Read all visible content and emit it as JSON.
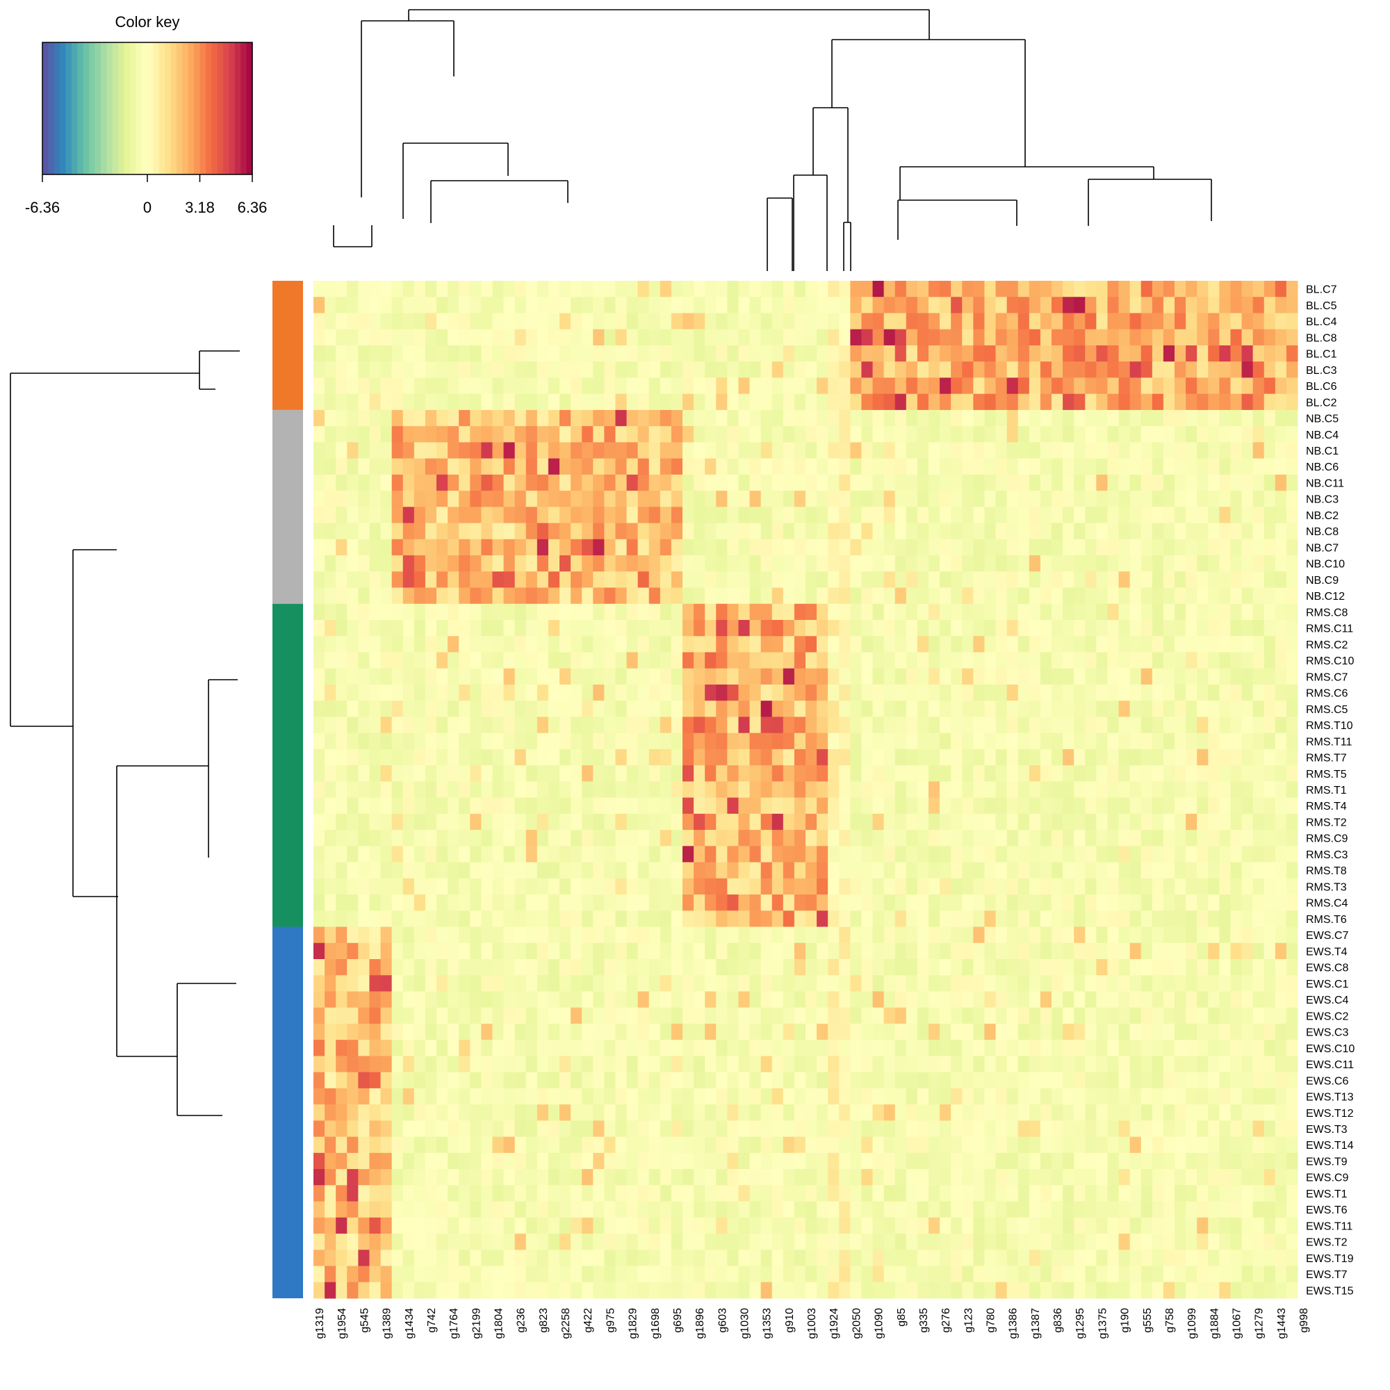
{
  "chart_data": {
    "type": "heatmap",
    "color_key": {
      "title": "Color key",
      "tick_labels": [
        "-6.36",
        "0",
        "3.18",
        "6.36"
      ],
      "ticks": [
        -6.36,
        0,
        3.18,
        6.36
      ],
      "min": -6.36,
      "max": 6.36,
      "palette": [
        "#5e4fa2",
        "#3288bd",
        "#66c2a5",
        "#abdda4",
        "#e6f598",
        "#ffffbf",
        "#fee08b",
        "#fdae61",
        "#f46d43",
        "#d53e4f",
        "#9e0142"
      ]
    },
    "columns": [
      "g1319",
      "g1954",
      "g545",
      "g1389",
      "g1434",
      "g742",
      "g1764",
      "g2199",
      "g1804",
      "g236",
      "g823",
      "g2258",
      "g422",
      "g975",
      "g1829",
      "g1698",
      "g695",
      "g1896",
      "g603",
      "g1030",
      "g1353",
      "g910",
      "g1003",
      "g1924",
      "g2050",
      "g1090",
      "g85",
      "g335",
      "g276",
      "g123",
      "g780",
      "g1386",
      "g1387",
      "g836",
      "g1295",
      "g1375",
      "g190",
      "g555",
      "g758",
      "g1099",
      "g1884",
      "g1067",
      "g1279",
      "g1443",
      "g998"
    ],
    "column_label_step": 2,
    "num_columns": 88,
    "column_blocks": [
      {
        "name": "g1319-g1389",
        "start": 0,
        "end": 7
      },
      {
        "name": "g1434-g695",
        "start": 7,
        "end": 33
      },
      {
        "name": "g1896-g1924",
        "start": 33,
        "end": 46
      },
      {
        "name": "g2050",
        "start": 46,
        "end": 48
      },
      {
        "name": "g1090-g998",
        "start": 48,
        "end": 88
      }
    ],
    "rows": [
      "BL.C7",
      "BL.C5",
      "BL.C4",
      "BL.C8",
      "BL.C1",
      "BL.C3",
      "BL.C6",
      "BL.C2",
      "NB.C5",
      "NB.C4",
      "NB.C1",
      "NB.C6",
      "NB.C11",
      "NB.C3",
      "NB.C2",
      "NB.C8",
      "NB.C7",
      "NB.C10",
      "NB.C9",
      "NB.C12",
      "RMS.C8",
      "RMS.C11",
      "RMS.C2",
      "RMS.C10",
      "RMS.C7",
      "RMS.C6",
      "RMS.C5",
      "RMS.T10",
      "RMS.T11",
      "RMS.T7",
      "RMS.T5",
      "RMS.T1",
      "RMS.T4",
      "RMS.T2",
      "RMS.C9",
      "RMS.C3",
      "RMS.T8",
      "RMS.T3",
      "RMS.C4",
      "RMS.T6",
      "EWS.C7",
      "EWS.T4",
      "EWS.C8",
      "EWS.C1",
      "EWS.C4",
      "EWS.C2",
      "EWS.C3",
      "EWS.C10",
      "EWS.C11",
      "EWS.C6",
      "EWS.T13",
      "EWS.T12",
      "EWS.T3",
      "EWS.T14",
      "EWS.T9",
      "EWS.C9",
      "EWS.T1",
      "EWS.T6",
      "EWS.T11",
      "EWS.T2",
      "EWS.T19",
      "EWS.T7",
      "EWS.T15"
    ],
    "groups": [
      {
        "name": "BL",
        "start": 0,
        "end": 8,
        "color": "#f07829",
        "active_block": 4,
        "level": 2.4
      },
      {
        "name": "NB",
        "start": 8,
        "end": 20,
        "color": "#b3b3b3",
        "active_block": 1,
        "level": 2.0
      },
      {
        "name": "RMS",
        "start": 20,
        "end": 40,
        "color": "#16905e",
        "active_block": 2,
        "level": 2.1
      },
      {
        "name": "EWS",
        "start": 40,
        "end": 63,
        "color": "#2e78c4",
        "active_block": 0,
        "level": 1.8
      }
    ],
    "background_level": -0.4
  }
}
